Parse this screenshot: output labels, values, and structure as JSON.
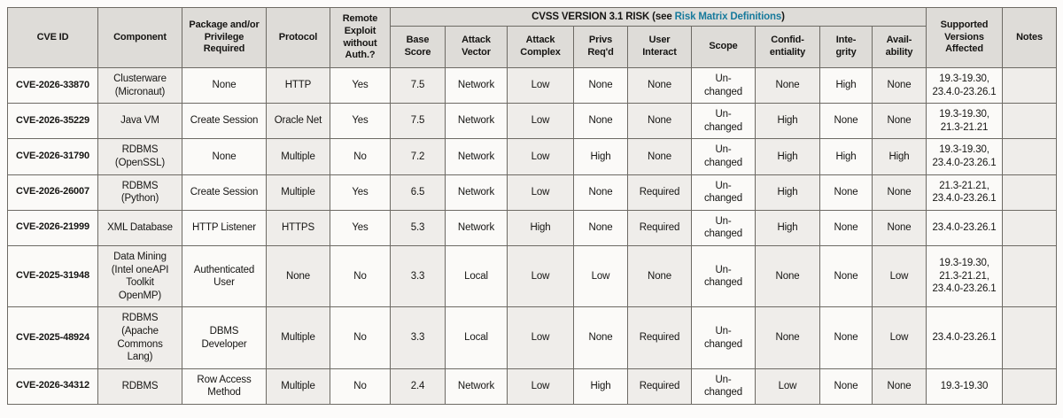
{
  "colors": {
    "link": "#177a9c",
    "header_bg": "#dedcd8",
    "stripe_bg": "#efedea",
    "cell_bg": "#fbfaf8",
    "border": "#6d6a64",
    "text": "#161513"
  },
  "table": {
    "cvss_header": {
      "prefix": "CVSS VERSION 3.1 RISK (see ",
      "link": "Risk Matrix Definitions",
      "suffix": ")"
    },
    "headers": {
      "cve_id": "CVE ID",
      "component": "Component",
      "package_privilege": "Package and/or\nPrivilege\nRequired",
      "protocol": "Protocol",
      "remote_exploit": "Remote\nExploit\nwithout\nAuth.?",
      "base_score": "Base\nScore",
      "attack_vector": "Attack\nVector",
      "attack_complex": "Attack\nComplex",
      "privs_reqd": "Privs\nReq'd",
      "user_interact": "User\nInteract",
      "scope": "Scope",
      "confidentiality": "Confid-\nentiality",
      "integrity": "Inte-\ngrity",
      "availability": "Avail-\nability",
      "supported_versions": "Supported\nVersions\nAffected",
      "notes": "Notes"
    },
    "column_names": [
      "cve-id-cell",
      "component-cell",
      "package-privilege-cell",
      "protocol-cell",
      "remote-exploit-cell",
      "base-score-cell",
      "attack-vector-cell",
      "attack-complex-cell",
      "privs-reqd-cell",
      "user-interact-cell",
      "scope-cell",
      "confidentiality-cell",
      "integrity-cell",
      "availability-cell",
      "supported-versions-cell",
      "notes-cell"
    ],
    "rows": [
      [
        "CVE-2026-33870",
        "Clusterware\n(Micronaut)",
        "None",
        "HTTP",
        "Yes",
        "7.5",
        "Network",
        "Low",
        "None",
        "None",
        "Un-\nchanged",
        "None",
        "High",
        "None",
        "19.3-19.30,\n23.4.0-23.26.1",
        ""
      ],
      [
        "CVE-2026-35229",
        "Java VM",
        "Create Session",
        "Oracle Net",
        "Yes",
        "7.5",
        "Network",
        "Low",
        "None",
        "None",
        "Un-\nchanged",
        "High",
        "None",
        "None",
        "19.3-19.30,\n21.3-21.21",
        ""
      ],
      [
        "CVE-2026-31790",
        "RDBMS\n(OpenSSL)",
        "None",
        "Multiple",
        "No",
        "7.2",
        "Network",
        "Low",
        "High",
        "None",
        "Un-\nchanged",
        "High",
        "High",
        "High",
        "19.3-19.30,\n23.4.0-23.26.1",
        ""
      ],
      [
        "CVE-2026-26007",
        "RDBMS\n(Python)",
        "Create Session",
        "Multiple",
        "Yes",
        "6.5",
        "Network",
        "Low",
        "None",
        "Required",
        "Un-\nchanged",
        "High",
        "None",
        "None",
        "21.3-21.21,\n23.4.0-23.26.1",
        ""
      ],
      [
        "CVE-2026-21999",
        "XML Database",
        "HTTP Listener",
        "HTTPS",
        "Yes",
        "5.3",
        "Network",
        "High",
        "None",
        "Required",
        "Un-\nchanged",
        "High",
        "None",
        "None",
        "23.4.0-23.26.1",
        ""
      ],
      [
        "CVE-2025-31948",
        "Data Mining\n(Intel oneAPI\nToolkit\nOpenMP)",
        "Authenticated\nUser",
        "None",
        "No",
        "3.3",
        "Local",
        "Low",
        "Low",
        "None",
        "Un-\nchanged",
        "None",
        "None",
        "Low",
        "19.3-19.30,\n21.3-21.21,\n23.4.0-23.26.1",
        ""
      ],
      [
        "CVE-2025-48924",
        "RDBMS\n(Apache\nCommons\nLang)",
        "DBMS\nDeveloper",
        "Multiple",
        "No",
        "3.3",
        "Local",
        "Low",
        "None",
        "Required",
        "Un-\nchanged",
        "None",
        "None",
        "Low",
        "23.4.0-23.26.1",
        ""
      ],
      [
        "CVE-2026-34312",
        "RDBMS",
        "Row Access\nMethod",
        "Multiple",
        "No",
        "2.4",
        "Network",
        "Low",
        "High",
        "Required",
        "Un-\nchanged",
        "Low",
        "None",
        "None",
        "19.3-19.30",
        ""
      ]
    ]
  }
}
